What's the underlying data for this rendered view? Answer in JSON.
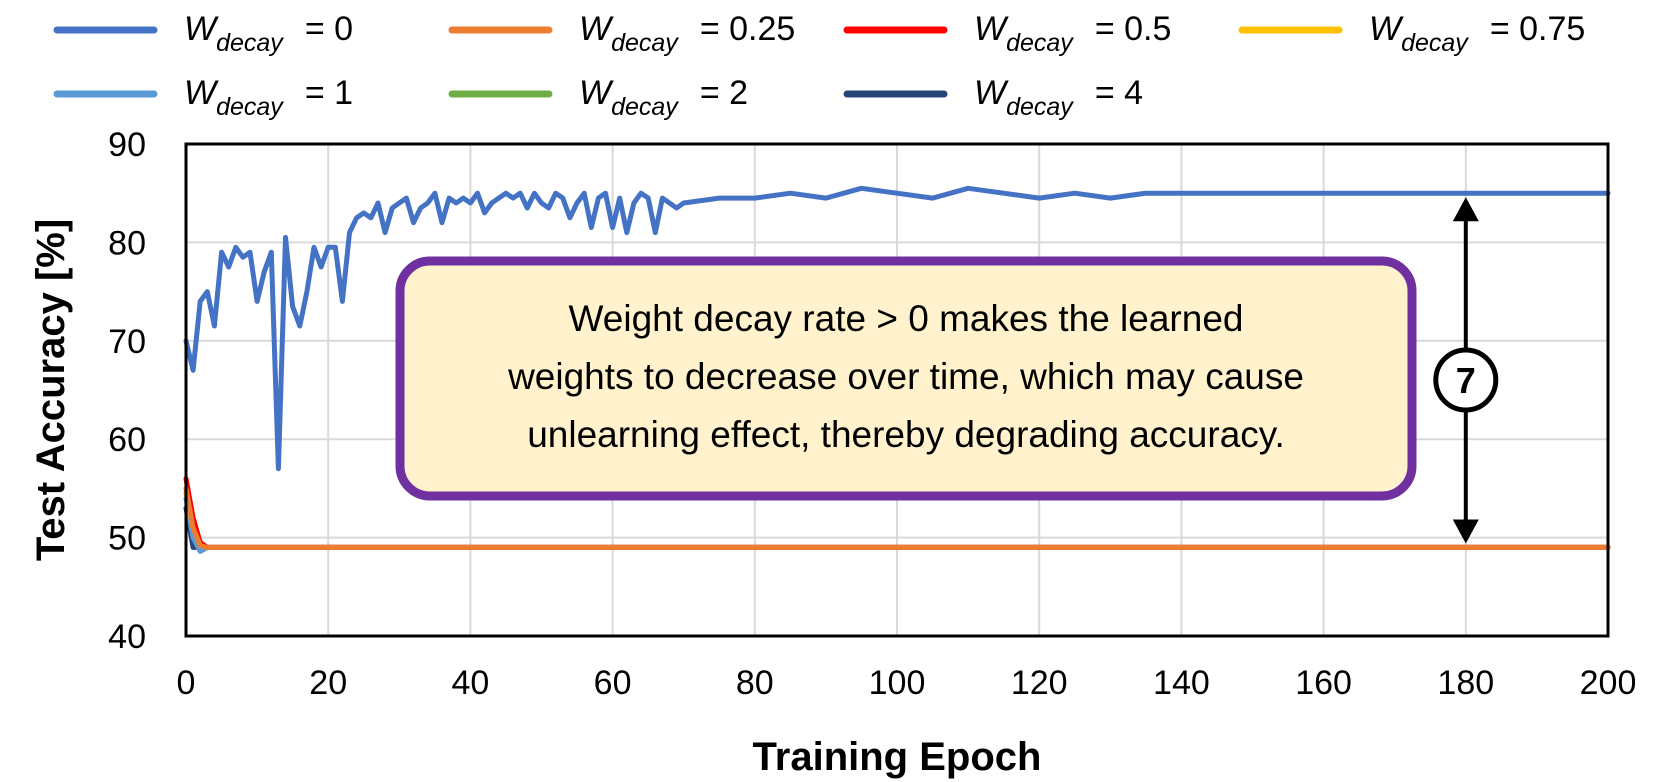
{
  "chart_data": {
    "type": "line",
    "title": "",
    "xlabel": "Training Epoch",
    "ylabel": "Test Accuracy [%]",
    "xlim": [
      0,
      200
    ],
    "ylim": [
      40,
      90
    ],
    "xticks": [
      0,
      20,
      40,
      60,
      80,
      100,
      120,
      140,
      160,
      180,
      200
    ],
    "yticks": [
      40,
      50,
      60,
      70,
      80,
      90
    ],
    "xtick_labels": [
      "0",
      "20",
      "40",
      "60",
      "80",
      "100",
      "120",
      "140",
      "160",
      "180",
      "200"
    ],
    "ytick_labels": [
      "40",
      "50",
      "60",
      "70",
      "80",
      "90"
    ],
    "grid": true,
    "legend_position": "top",
    "legend_symbol": "W",
    "legend_subscript": "decay",
    "series": [
      {
        "name": "W_decay = 0",
        "legend_value": "= 0",
        "color": "#4472C4",
        "x": [
          0,
          1,
          2,
          3,
          4,
          5,
          6,
          7,
          8,
          9,
          10,
          11,
          12,
          13,
          14,
          15,
          16,
          17,
          18,
          19,
          20,
          21,
          22,
          23,
          24,
          25,
          26,
          27,
          28,
          29,
          30,
          31,
          32,
          33,
          34,
          35,
          36,
          37,
          38,
          39,
          40,
          41,
          42,
          43,
          44,
          45,
          46,
          47,
          48,
          49,
          50,
          51,
          52,
          53,
          54,
          55,
          56,
          57,
          58,
          59,
          60,
          61,
          62,
          63,
          64,
          65,
          66,
          67,
          68,
          69,
          70,
          75,
          80,
          85,
          90,
          95,
          100,
          105,
          110,
          115,
          120,
          125,
          130,
          135,
          140,
          145,
          150,
          155,
          160,
          165,
          170,
          175,
          180,
          185,
          190,
          195,
          200
        ],
        "values": [
          70,
          67,
          74,
          75,
          71.5,
          79,
          77.5,
          79.5,
          78.5,
          79,
          74,
          77,
          79,
          57,
          80.5,
          73.5,
          71.5,
          75,
          79.5,
          77.5,
          79.5,
          79.5,
          74,
          81,
          82.5,
          83,
          82.5,
          84,
          81,
          83.5,
          84,
          84.5,
          82,
          83.5,
          84,
          85,
          82,
          84.5,
          84,
          84.5,
          84,
          85,
          83,
          84,
          84.5,
          85,
          84.5,
          85,
          83.5,
          85,
          84,
          83.5,
          85,
          84.5,
          82.5,
          84,
          85,
          81.5,
          84.5,
          85,
          81.5,
          84.5,
          81,
          84,
          85,
          84.5,
          81,
          84.5,
          84,
          83.5,
          84,
          84.5,
          84.5,
          85,
          84.5,
          85.5,
          85,
          84.5,
          85.5,
          85,
          84.5,
          85,
          84.5,
          85,
          85,
          85,
          85,
          85,
          85,
          85,
          85,
          85,
          85,
          85,
          85,
          85,
          85
        ]
      },
      {
        "name": "W_decay = 0.25",
        "legend_value": "= 0.25",
        "color": "#ED7D31",
        "x": [
          0,
          1,
          2,
          3,
          200
        ],
        "values": [
          55,
          51,
          49.2,
          49,
          49
        ]
      },
      {
        "name": "W_decay = 0.5",
        "legend_value": "= 0.5",
        "color": "#FF0000",
        "x": [
          0,
          1,
          2,
          3,
          200
        ],
        "values": [
          56,
          52,
          49.5,
          49,
          49
        ]
      },
      {
        "name": "W_decay = 0.75",
        "legend_value": "= 0.75",
        "color": "#FFC000",
        "x": [
          0,
          1,
          2,
          3,
          200
        ],
        "values": [
          54.5,
          51,
          49.3,
          49,
          49
        ]
      },
      {
        "name": "W_decay = 1",
        "legend_value": "= 1",
        "color": "#5B9BD5",
        "x": [
          0,
          1,
          2,
          3,
          200
        ],
        "values": [
          54,
          50,
          48.6,
          49,
          49
        ]
      },
      {
        "name": "W_decay = 2",
        "legend_value": "= 2",
        "color": "#70AD47",
        "x": [
          0,
          1,
          2,
          3,
          200
        ],
        "values": [
          55,
          51,
          49.5,
          49,
          49
        ]
      },
      {
        "name": "W_decay = 4",
        "legend_value": "= 4",
        "color": "#264478",
        "x": [
          0,
          1,
          2,
          200
        ],
        "values": [
          53,
          49,
          49,
          49
        ]
      }
    ],
    "annotations": {
      "text_lines": [
        "Weight decay rate > 0 makes the learned",
        "weights to decrease over time, which may cause",
        "unlearning effect, thereby degrading accuracy."
      ],
      "box_fill": "#FFF2CC",
      "box_stroke": "#7030A0",
      "marker_label": "7",
      "arrow_x": 180,
      "arrow_y_top": 85,
      "arrow_y_bottom": 49
    }
  }
}
